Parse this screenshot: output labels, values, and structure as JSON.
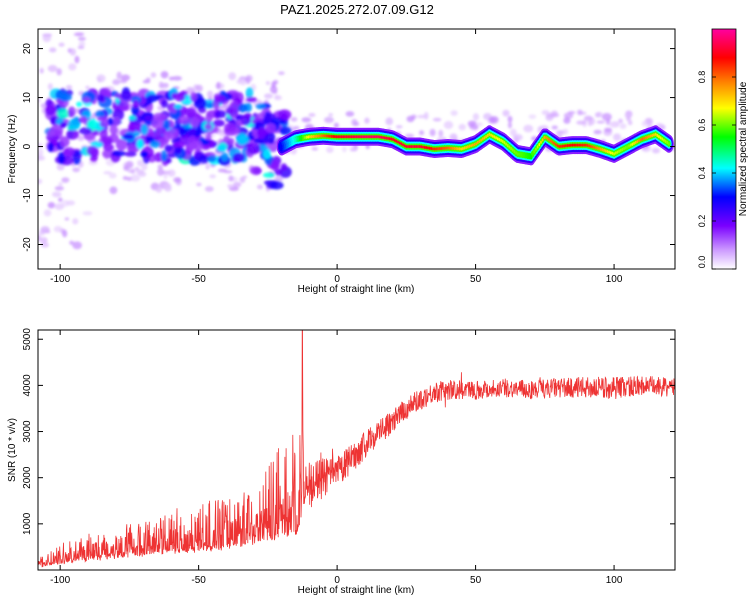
{
  "title": "PAZ1.2025.272.07.09.G12",
  "chart_data": [
    {
      "type": "heatmap",
      "name": "spectrogram",
      "xlabel": "Height of straight line (km)",
      "ylabel": "Frequency (Hz)",
      "xlim": [
        -108,
        122
      ],
      "ylim": [
        -25,
        24
      ],
      "xticks": [
        "-100",
        "-50",
        "0",
        "50",
        "100"
      ],
      "xtick_values": [
        -100,
        -50,
        0,
        50,
        100
      ],
      "yticks": [
        "-20",
        "-10",
        "0",
        "10",
        "20"
      ],
      "ytick_values": [
        -20,
        -10,
        0,
        10,
        20
      ],
      "colorbar": {
        "label": "Normalized spectral amplitude",
        "range": [
          0,
          1
        ],
        "ticks": [
          "0.0",
          "0.2",
          "0.4",
          "0.6",
          "0.8"
        ],
        "tick_values": [
          0.0,
          0.2,
          0.4,
          0.6,
          0.8
        ],
        "colors": [
          "#ffffff",
          "#cc99ff",
          "#7a00ff",
          "#0000ff",
          "#00ffff",
          "#00ff00",
          "#ffff00",
          "#ff8000",
          "#ff0000",
          "#ff00a0"
        ]
      },
      "ridge": {
        "x": [
          -20,
          -15,
          -10,
          -5,
          0,
          5,
          10,
          15,
          20,
          25,
          30,
          35,
          40,
          45,
          50,
          55,
          60,
          65,
          70,
          75,
          80,
          85,
          90,
          95,
          100,
          105,
          110,
          115,
          120
        ],
        "y": [
          0,
          1.5,
          2,
          2.2,
          2,
          2,
          2,
          2,
          1.5,
          0,
          0,
          -0.5,
          -0.3,
          -0.5,
          0.5,
          2.5,
          1,
          -1.5,
          -2,
          2,
          0,
          0.3,
          0.3,
          -0.5,
          -1.5,
          0,
          1.5,
          2.5,
          0.5
        ],
        "amplitude": [
          0.3,
          0.45,
          0.7,
          0.8,
          0.9,
          0.92,
          0.95,
          0.95,
          0.9,
          0.92,
          0.92,
          0.85,
          0.8,
          0.7,
          0.75,
          0.7,
          0.65,
          0.6,
          0.55,
          0.75,
          0.85,
          0.88,
          0.85,
          0.75,
          0.65,
          0.6,
          0.8,
          0.7,
          0.6
        ]
      }
    },
    {
      "type": "line",
      "name": "snr",
      "xlabel": "Height of straight line (km)",
      "ylabel": "SNR (10 * v/v)",
      "xlim": [
        -108,
        122
      ],
      "ylim": [
        0,
        5200
      ],
      "xticks": [
        "-100",
        "-50",
        "0",
        "50",
        "100"
      ],
      "xtick_values": [
        -100,
        -50,
        0,
        50,
        100
      ],
      "yticks": [
        "1000",
        "2000",
        "3000",
        "4000",
        "5000"
      ],
      "ytick_values": [
        1000,
        2000,
        3000,
        4000,
        5000
      ],
      "color": "#ee3333",
      "trend": {
        "x": [
          -108,
          -100,
          -90,
          -80,
          -70,
          -60,
          -50,
          -40,
          -30,
          -20,
          -14,
          -12,
          -10,
          -5,
          0,
          5,
          10,
          15,
          20,
          25,
          30,
          35,
          40,
          50,
          60,
          70,
          80,
          90,
          100,
          110,
          122
        ],
        "y": [
          150,
          200,
          300,
          350,
          400,
          450,
          500,
          550,
          650,
          800,
          900,
          1500,
          1800,
          2000,
          2100,
          2400,
          2700,
          3000,
          3200,
          3500,
          3700,
          3850,
          3900,
          3900,
          3950,
          3900,
          3950,
          3950,
          3950,
          4000,
          3950
        ]
      },
      "noise": {
        "x": [
          -108,
          -80,
          -50,
          -30,
          -20,
          -14,
          -10,
          0,
          20,
          40,
          60,
          80,
          100,
          122
        ],
        "amplitude": [
          120,
          300,
          450,
          600,
          900,
          1000,
          500,
          350,
          250,
          220,
          200,
          220,
          250,
          200
        ]
      },
      "spike": {
        "x": -12.5,
        "y": 5200
      }
    }
  ]
}
